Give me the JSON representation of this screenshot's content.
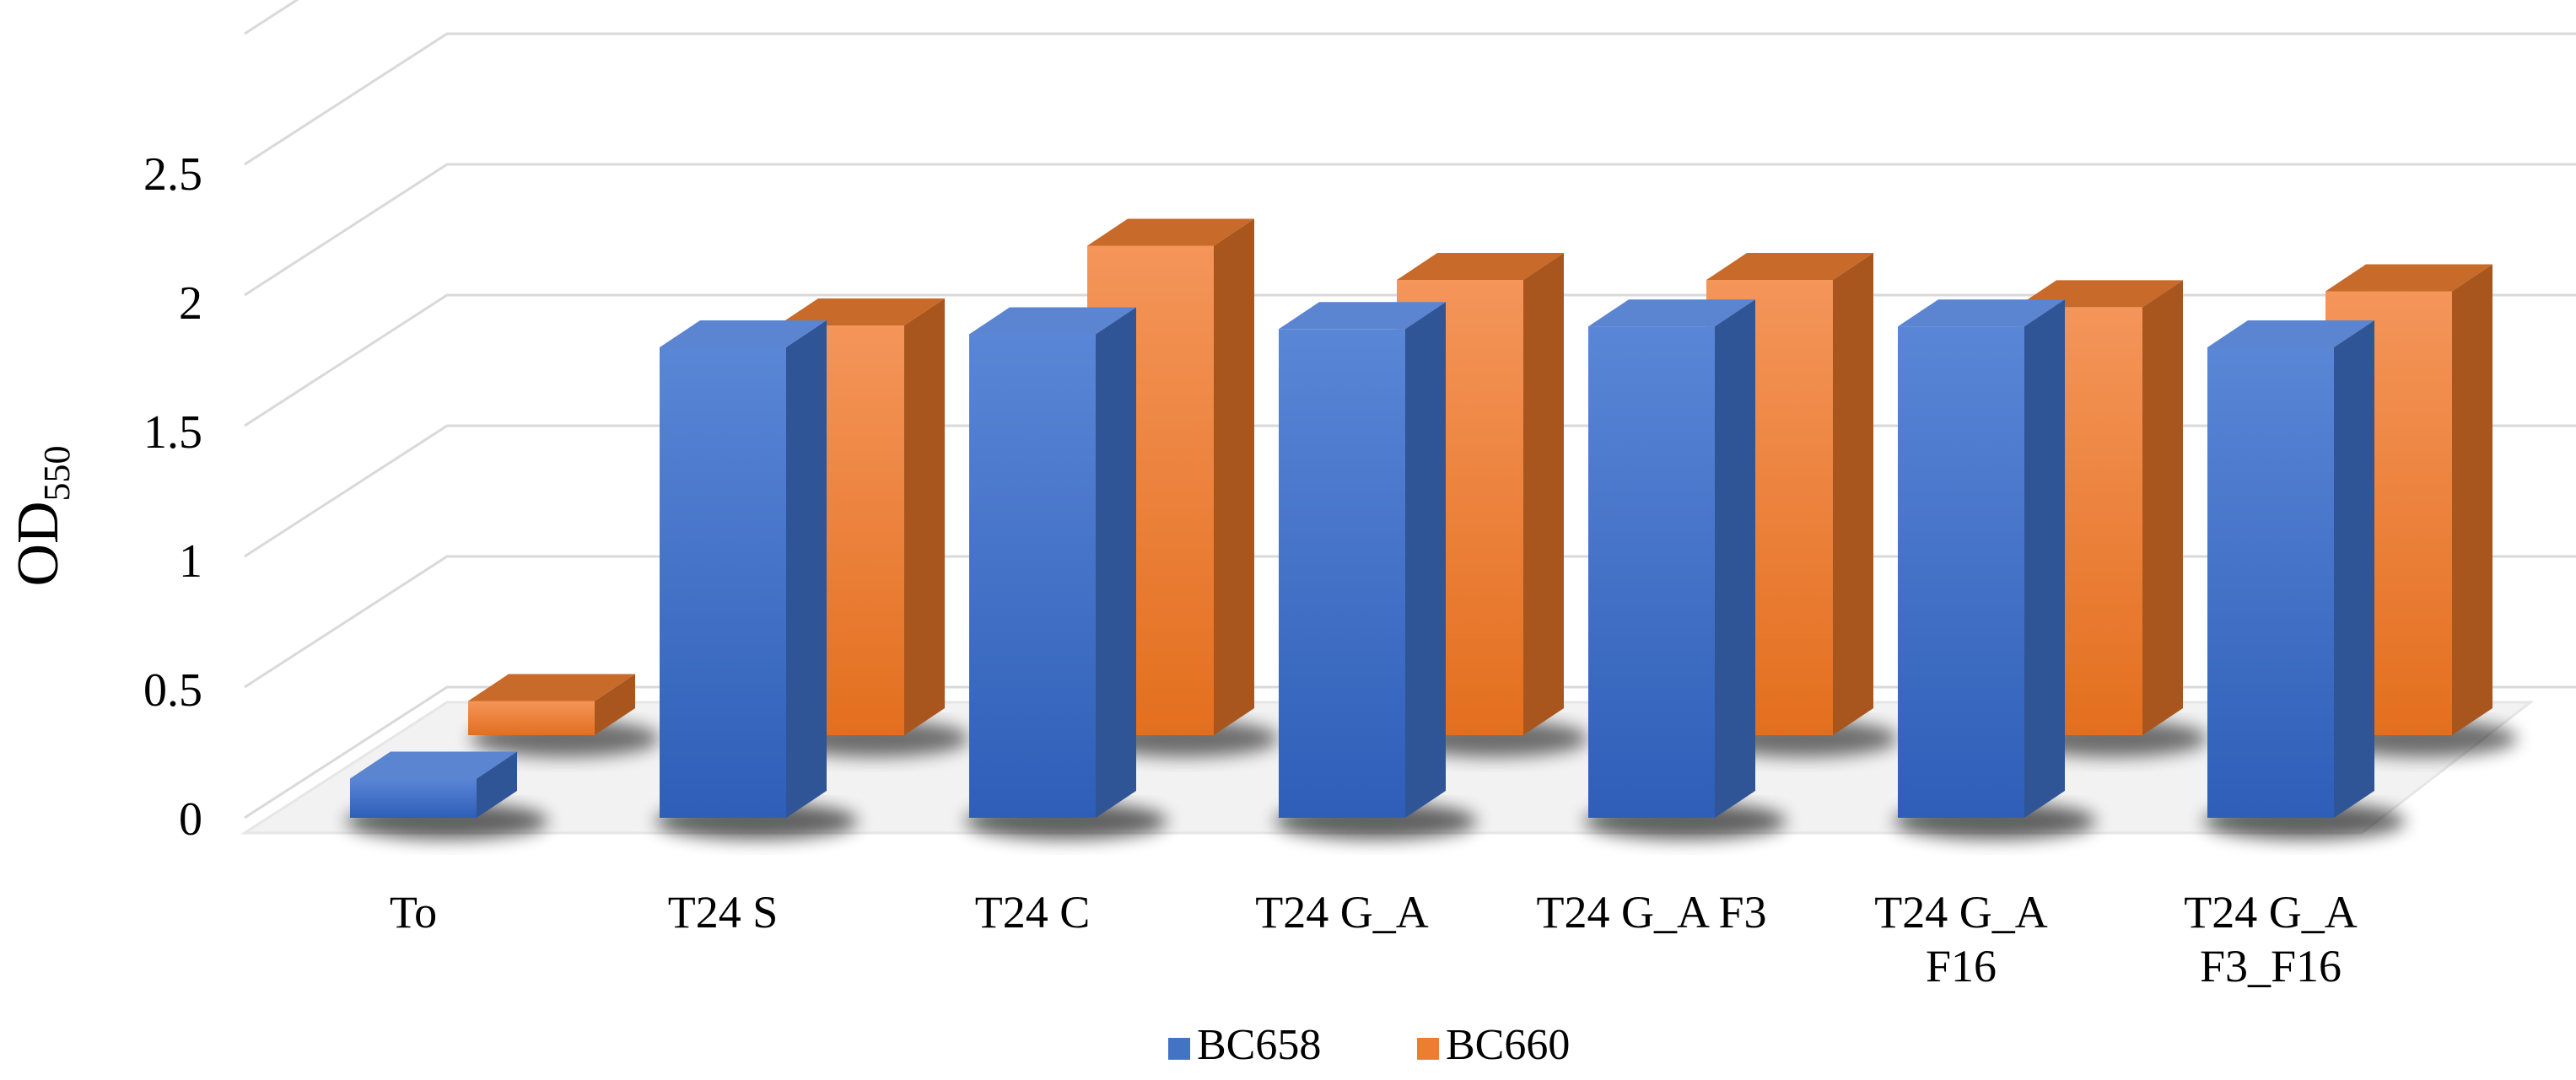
{
  "chart_data": {
    "type": "bar",
    "title": "",
    "xlabel": "",
    "ylabel": "OD",
    "ylabel_subscript": "550",
    "ylim": [
      0,
      2.5
    ],
    "yticks": [
      "0",
      "0.5",
      "1",
      "1.5",
      "2",
      "2.5"
    ],
    "categories": [
      [
        "To"
      ],
      [
        "T24 S"
      ],
      [
        "T24 C"
      ],
      [
        "T24 G_A"
      ],
      [
        "T24 G_A F3"
      ],
      [
        "T24 G_A",
        "F16"
      ],
      [
        "T24 G_A",
        "F3_F16"
      ]
    ],
    "series": [
      {
        "name": "BC658",
        "values": [
          0.15,
          1.8,
          1.85,
          1.87,
          1.88,
          1.88,
          1.8
        ]
      },
      {
        "name": "BC660",
        "values": [
          0.15,
          1.8,
          2.15,
          2.0,
          2.0,
          1.88,
          1.95
        ]
      }
    ],
    "legend_position": "bottom-center",
    "grid": true,
    "colors": {
      "BC658": {
        "front": "#4472C4",
        "side": "#2F5597",
        "top": "#5B85D1"
      },
      "BC660": {
        "front": "#ED7D31",
        "side": "#A9561E",
        "top": "#C76A2A"
      },
      "grid": "#D9D9D9",
      "floor": "#F2F2F2"
    }
  }
}
